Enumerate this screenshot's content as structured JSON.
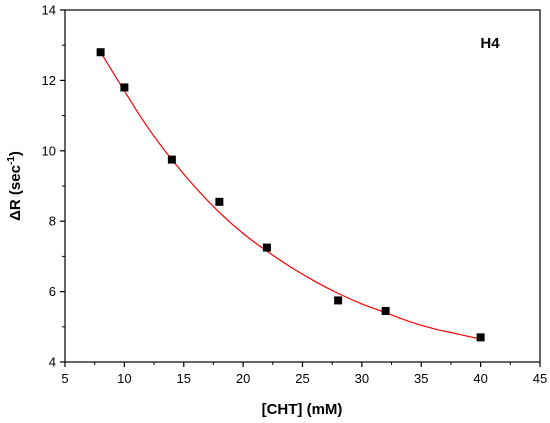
{
  "chart_data": {
    "type": "scatter",
    "title": "",
    "annotation": "H4",
    "xlabel": "[CHT] (mM)",
    "ylabel": {
      "main": "ΔR (sec",
      "sup": "-1",
      "close": ")"
    },
    "xlim": [
      5,
      45
    ],
    "ylim": [
      4,
      14
    ],
    "xticks": [
      5,
      10,
      15,
      20,
      25,
      30,
      35,
      40,
      45
    ],
    "yticks": [
      4,
      6,
      8,
      10,
      12,
      14
    ],
    "grid": false,
    "legend": "none",
    "series": [
      {
        "kind": "points",
        "marker": "square",
        "color": "#000000",
        "x": [
          8,
          10,
          14,
          18,
          22,
          28,
          32,
          40
        ],
        "y": [
          12.8,
          11.8,
          9.75,
          8.55,
          7.25,
          5.75,
          5.45,
          4.7
        ]
      },
      {
        "kind": "fit-curve",
        "color": "#ff0000",
        "x": [
          8,
          10,
          12,
          14,
          16,
          18,
          20,
          22,
          24,
          26,
          28,
          30,
          32,
          34,
          36,
          38,
          40
        ],
        "y": [
          12.8,
          11.7,
          10.65,
          9.75,
          8.95,
          8.25,
          7.65,
          7.15,
          6.7,
          6.3,
          5.95,
          5.65,
          5.4,
          5.15,
          4.95,
          4.8,
          4.65
        ]
      }
    ]
  }
}
